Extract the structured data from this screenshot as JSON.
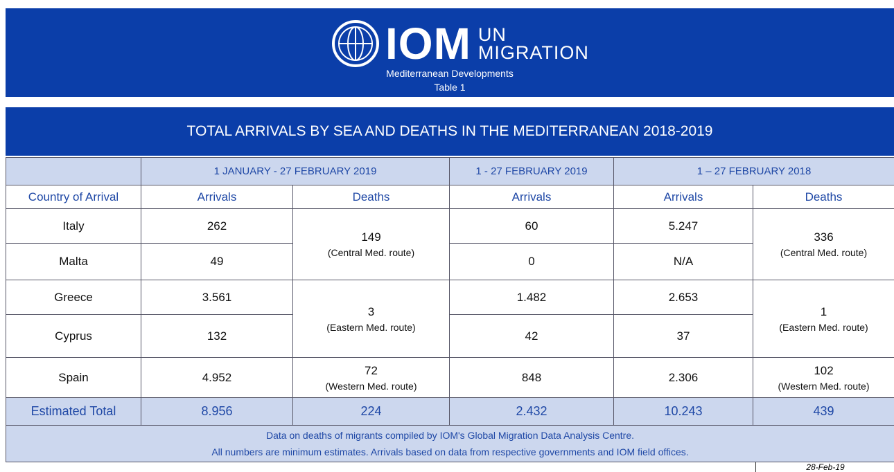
{
  "header": {
    "logo": "IOM",
    "logo_sub": [
      "UN",
      "MIGRATION"
    ],
    "subtitle": "Mediterranean Developments",
    "table_label": "Table 1"
  },
  "table": {
    "title": "TOTAL ARRIVALS BY SEA AND DEATHS IN THE MEDITERRANEAN 2018-2019",
    "periods": [
      "1 JANUARY - 27 FEBRUARY 2019",
      "1 - 27 FEBRUARY 2019",
      "1 – 27 FEBRUARY 2018"
    ],
    "columns": [
      "Country of Arrival",
      "Arrivals",
      "Deaths",
      "Arrivals",
      "Arrivals",
      "Deaths"
    ],
    "rows": [
      {
        "country": "Italy",
        "arrivals_2019": "262",
        "arrivals_feb_2019": "60",
        "arrivals_2018": "5.247"
      },
      {
        "country": "Malta",
        "arrivals_2019": "49",
        "arrivals_feb_2019": "0",
        "arrivals_2018": "N/A"
      },
      {
        "country": "Greece",
        "arrivals_2019": "3.561",
        "arrivals_feb_2019": "1.482",
        "arrivals_2018": "2.653"
      },
      {
        "country": "Cyprus",
        "arrivals_2019": "132",
        "arrivals_feb_2019": "42",
        "arrivals_2018": "37"
      },
      {
        "country": "Spain",
        "arrivals_2019": "4.952",
        "arrivals_feb_2019": "848",
        "arrivals_2018": "2.306"
      }
    ],
    "deaths_2019": [
      {
        "value": "149",
        "route": "(Central Med. route)"
      },
      {
        "value": "3",
        "route": "(Eastern Med. route)"
      },
      {
        "value": "72",
        "route": "(Western Med. route)"
      }
    ],
    "deaths_2018": [
      {
        "value": "336",
        "route": "(Central Med. route)"
      },
      {
        "value": "1",
        "route": "(Eastern Med. route)"
      },
      {
        "value": "102",
        "route": "(Western Med. route)"
      }
    ],
    "total": {
      "label": "Estimated Total",
      "values": [
        "8.956",
        "224",
        "2.432",
        "10.243",
        "439"
      ]
    },
    "notes": [
      "Data on deaths of migrants compiled by IOM's Global Migration Data Analysis Centre.",
      "All numbers are minimum estimates. Arrivals based on data from respective governments and IOM field offices."
    ]
  },
  "date": "28-Feb-19"
}
